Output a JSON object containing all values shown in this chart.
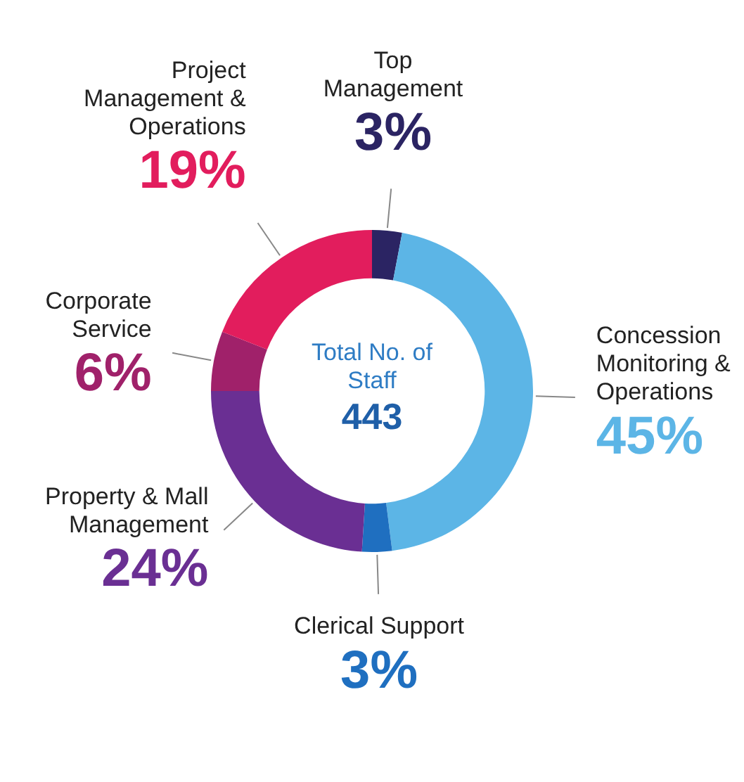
{
  "chart_data": {
    "type": "donut",
    "categories": [
      "Top Management",
      "Concession Monitoring & Operations",
      "Clerical Support",
      "Property & Mall Management",
      "Corporate Service",
      "Project Management & Operations"
    ],
    "values": [
      3,
      45,
      3,
      24,
      6,
      19
    ],
    "value_labels": [
      "3%",
      "45%",
      "3%",
      "24%",
      "6%",
      "19%"
    ],
    "colors": [
      "#2b2463",
      "#5cb5e6",
      "#1f6fc0",
      "#6a2f93",
      "#a0216a",
      "#e21d5d"
    ],
    "annotations": [
      "Total No. of Staff",
      "443"
    ],
    "legend": false
  }
}
